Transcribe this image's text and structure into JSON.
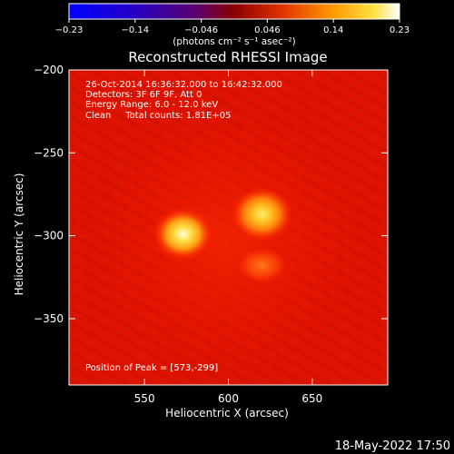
{
  "chart_data": {
    "type": "heatmap",
    "title": "Reconstructed RHESSI Image",
    "xlabel": "Heliocentric X (arcsec)",
    "ylabel": "Heliocentric Y (arcsec)",
    "xlim": [
      505,
      695
    ],
    "ylim": [
      -390,
      -200
    ],
    "x_ticks": [
      550,
      600,
      650
    ],
    "y_ticks": [
      -200,
      -250,
      -300,
      -350
    ],
    "colorbar": {
      "colormap": "fire",
      "range": [
        -0.23,
        0.23
      ],
      "ticks": [
        "−0.23",
        "−0.14",
        "−0.046",
        "0.046",
        "0.14",
        "0.23"
      ],
      "unit_label": "(photons cm⁻² s⁻¹ asec⁻²)"
    },
    "sources": [
      {
        "x": 573,
        "y": -299,
        "peak": 0.23
      },
      {
        "x": 620,
        "y": -287,
        "peak": 0.19
      },
      {
        "x": 620,
        "y": -318,
        "peak": 0.09
      }
    ],
    "annotations": {
      "line1": "26-Oct-2014 16:36:32.000 to 16:42:32.000",
      "line2": "Detectors: 3F 6F 9F, Att 0",
      "line3": "Energy Range: 6.0 - 12.0 keV",
      "line4": "Clean     Total counts: 1.81E+05",
      "peak": "Position of Peak = [573,-299]"
    },
    "footer_date": "18-May-2022 17:50"
  }
}
